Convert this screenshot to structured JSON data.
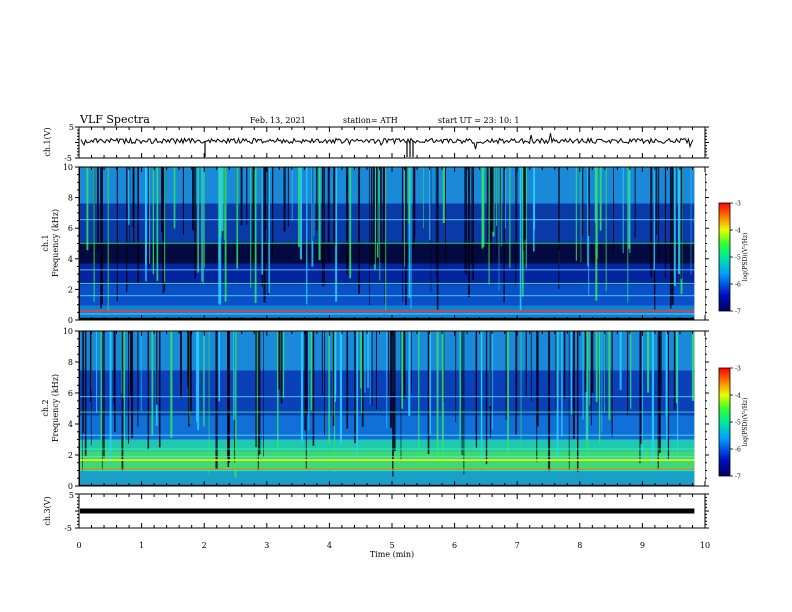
{
  "header": {
    "title": "VLF Spectra",
    "date": "Feb. 13, 2021",
    "station": "station= ATH",
    "start": "start  UT  =   23: 10: 1"
  },
  "colors": {
    "frame": "#000000",
    "trace": "#000000",
    "background": "#ffffff"
  },
  "chart_data": [
    {
      "type": "line",
      "panel": "ch1-waveform",
      "ylabel": "ch.1(V)",
      "ylim": [
        -5,
        5
      ],
      "yticks": [
        "5",
        "-5"
      ],
      "xlim": [
        0,
        10
      ],
      "series": [
        {
          "values_min": [
            0,
            9.83
          ],
          "level": 0.5
        }
      ]
    },
    {
      "type": "heatmap",
      "panel": "ch1-spectrogram",
      "ylabel": "ch.1",
      "ylabel2": "Frequency  (kHz)",
      "ylim": [
        0,
        10
      ],
      "yticks": [
        "0",
        "2",
        "4",
        "6",
        "8",
        "10"
      ],
      "xlim": [
        0,
        10
      ],
      "data_end_min": 9.83,
      "colorbar": {
        "label": "log(PSD)(V²/Hz)",
        "range": [
          -7,
          -3
        ],
        "ticks": [
          "-3",
          "-4",
          "-5",
          "-6",
          "-7"
        ]
      }
    },
    {
      "type": "heatmap",
      "panel": "ch2-spectrogram",
      "ylabel": "ch.2",
      "ylabel2": "Frequency  (kHz)",
      "ylim": [
        0,
        10
      ],
      "yticks": [
        "0",
        "2",
        "4",
        "6",
        "8",
        "10"
      ],
      "xlim": [
        0,
        10
      ],
      "data_end_min": 9.83,
      "colorbar": {
        "label": "log(PSD)(V²/Hz)",
        "range": [
          -7,
          -3
        ],
        "ticks": [
          "-3",
          "-4",
          "-5",
          "-6",
          "-7"
        ]
      }
    },
    {
      "type": "line",
      "panel": "ch3-waveform",
      "ylabel": "ch.3(V)",
      "ylim": [
        -5,
        5
      ],
      "yticks": [
        "5",
        "-5"
      ],
      "xlim": [
        0,
        10
      ],
      "xlabel": "Time  (min)",
      "xticks": [
        "0",
        "1",
        "2",
        "3",
        "4",
        "5",
        "6",
        "7",
        "8",
        "9",
        "10"
      ],
      "series": [
        {
          "values_min": [
            0,
            9.83
          ],
          "level": 0
        }
      ]
    }
  ]
}
